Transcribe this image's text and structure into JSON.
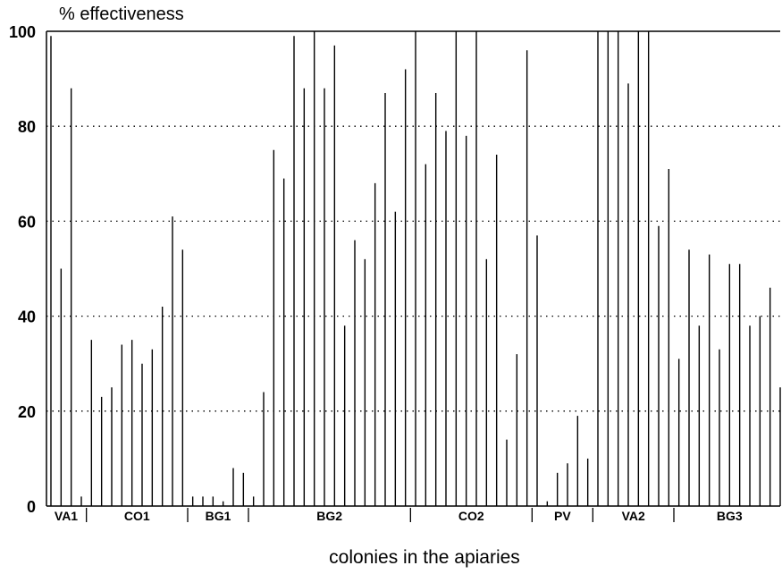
{
  "chart_data": {
    "type": "bar",
    "ylabel": "% effectiveness",
    "xlabel": "colonies in the apiaries",
    "ylim": [
      0,
      100
    ],
    "yticks": [
      0,
      20,
      40,
      60,
      80,
      100
    ],
    "grid": "horizontal dotted at 20, 40, 60, 80",
    "bar_color": "#000000",
    "groups": [
      {
        "label": "VA1",
        "values": [
          99,
          50,
          88,
          2
        ]
      },
      {
        "label": "CO1",
        "values": [
          35,
          23,
          25,
          34,
          35,
          30,
          33,
          42,
          61,
          54
        ]
      },
      {
        "label": "BG1",
        "values": [
          2,
          2,
          2,
          1,
          8,
          7
        ]
      },
      {
        "label": "BG2",
        "values": [
          2,
          24,
          75,
          69,
          99,
          88,
          100,
          88,
          97,
          38,
          56,
          52,
          68,
          87,
          62,
          92
        ]
      },
      {
        "label": "CO2",
        "values": [
          100,
          72,
          87,
          79,
          100,
          78,
          100,
          52,
          74,
          14,
          32,
          96
        ]
      },
      {
        "label": "PV",
        "values": [
          57,
          1,
          7,
          9,
          19,
          10
        ]
      },
      {
        "label": "VA2",
        "values": [
          100,
          100,
          100,
          89,
          100,
          100,
          59,
          71
        ]
      },
      {
        "label": "BG3",
        "values": [
          31,
          54,
          38,
          53,
          33,
          51,
          51,
          38,
          40,
          46,
          25
        ]
      }
    ]
  }
}
